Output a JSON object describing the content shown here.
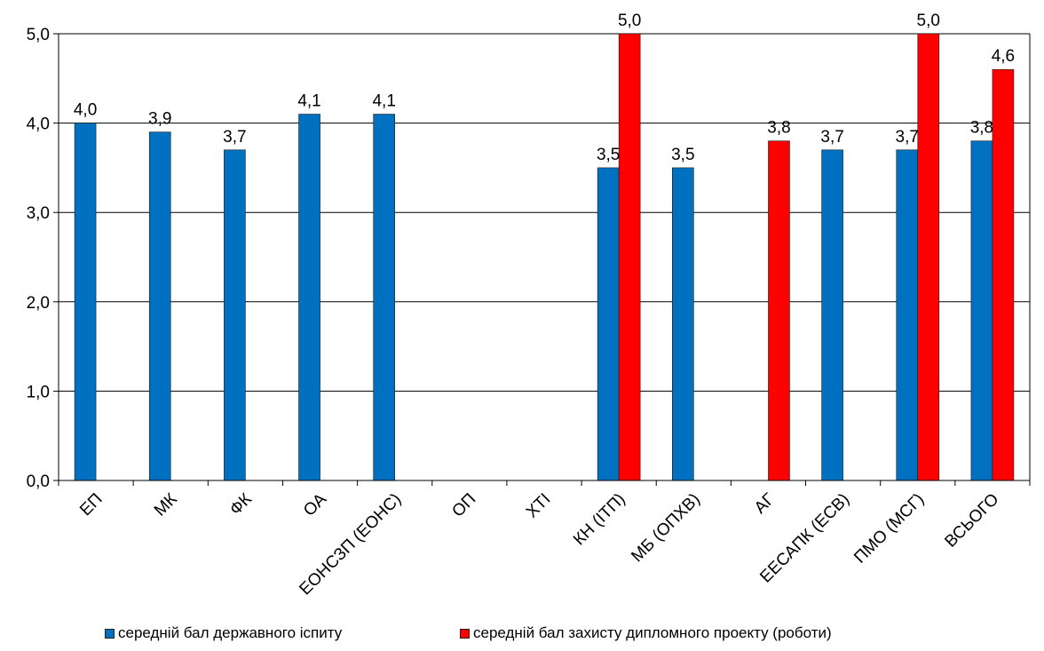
{
  "chart_data": {
    "type": "bar",
    "title": "",
    "xlabel": "",
    "ylabel": "",
    "ylim": [
      0,
      5
    ],
    "y_ticks": [
      "0,0",
      "1,0",
      "2,0",
      "3,0",
      "4,0",
      "5,0"
    ],
    "grid": true,
    "legend_position": "bottom",
    "categories": [
      "ЕП",
      "МК",
      "ФК",
      "ОА",
      "ЕОНСЗП (ЕОНС)",
      "ОП",
      "ХТІ",
      "КН (ІТП)",
      "МБ (ОПХВ)",
      "АГ",
      "ЕЕСАПК (ЕСВ)",
      "ПМО (МСГ)",
      "ВСЬОГО"
    ],
    "series": [
      {
        "name": "середній бал державного іспиту",
        "color": "#0070c0",
        "values": [
          4.0,
          3.9,
          3.7,
          4.1,
          4.1,
          null,
          null,
          3.5,
          3.5,
          null,
          3.7,
          3.7,
          3.8
        ],
        "labels": [
          "4,0",
          "3,9",
          "3,7",
          "4,1",
          "4,1",
          "",
          "",
          "3,5",
          "3,5",
          "",
          "3,7",
          "3,7",
          "3,8"
        ]
      },
      {
        "name": "середній бал захисту дипломного проекту (роботи)",
        "color": "#ff0000",
        "values": [
          null,
          null,
          null,
          null,
          null,
          null,
          null,
          5.0,
          null,
          3.8,
          null,
          5.0,
          4.6
        ],
        "labels": [
          "",
          "",
          "",
          "",
          "",
          "",
          "",
          "5,0",
          "",
          "3,8",
          "",
          "5,0",
          "4,6"
        ]
      }
    ]
  }
}
